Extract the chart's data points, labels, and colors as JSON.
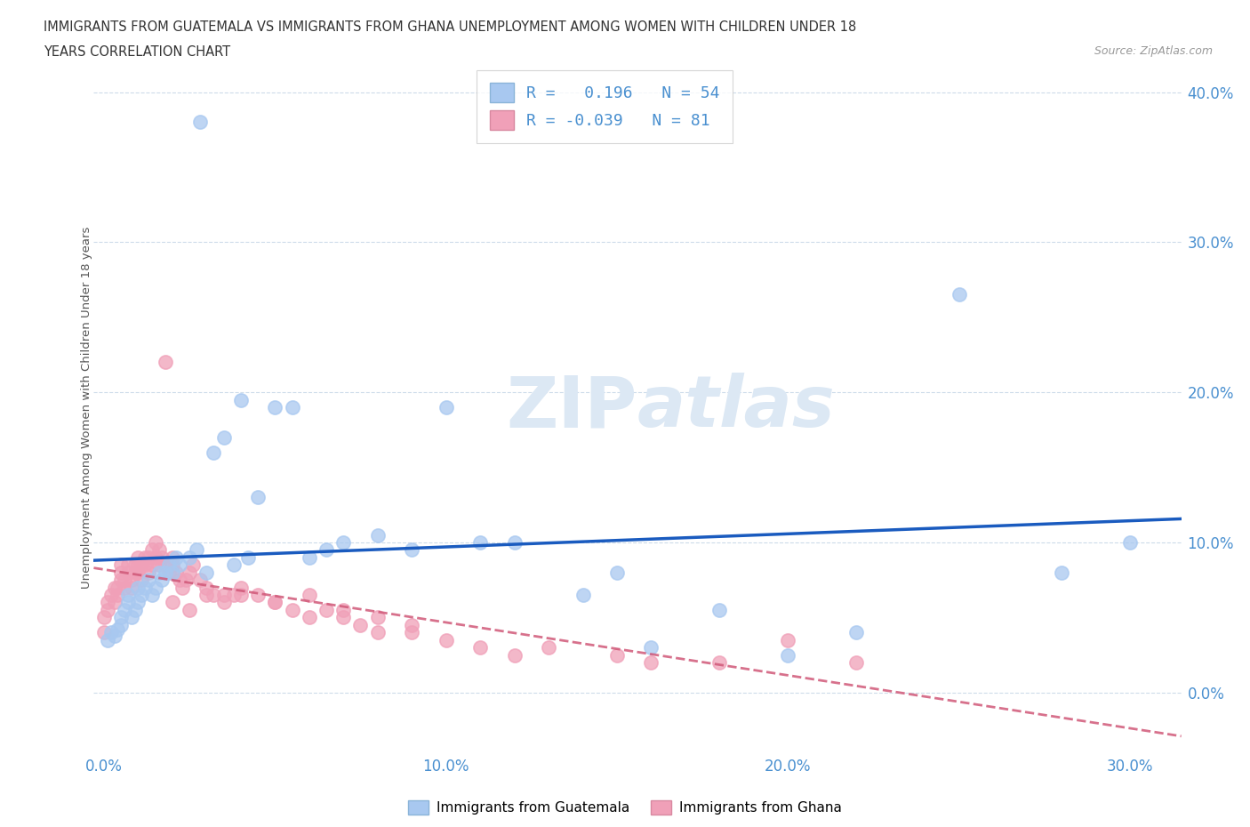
{
  "title_line1": "IMMIGRANTS FROM GUATEMALA VS IMMIGRANTS FROM GHANA UNEMPLOYMENT AMONG WOMEN WITH CHILDREN UNDER 18",
  "title_line2": "YEARS CORRELATION CHART",
  "source": "Source: ZipAtlas.com",
  "ylabel": "Unemployment Among Women with Children Under 18 years",
  "r_guatemala": 0.196,
  "n_guatemala": 54,
  "r_ghana": -0.039,
  "n_ghana": 81,
  "guatemala_color": "#a8c8f0",
  "ghana_color": "#f0a0b8",
  "guatemala_line_color": "#1a5bbf",
  "ghana_line_color": "#d05878",
  "background_color": "#ffffff",
  "grid_color": "#c8d8e8",
  "tick_color": "#4a90d0",
  "watermark_color": "#dce8f4",
  "xlim": [
    -0.003,
    0.315
  ],
  "ylim": [
    -0.04,
    0.42
  ],
  "xtick_vals": [
    0.0,
    0.1,
    0.2,
    0.3
  ],
  "ytick_vals": [
    0.0,
    0.1,
    0.2,
    0.3,
    0.4
  ],
  "guatemala_x": [
    0.001,
    0.002,
    0.003,
    0.004,
    0.005,
    0.005,
    0.006,
    0.007,
    0.007,
    0.008,
    0.009,
    0.01,
    0.01,
    0.011,
    0.012,
    0.013,
    0.014,
    0.015,
    0.016,
    0.017,
    0.018,
    0.019,
    0.02,
    0.021,
    0.022,
    0.025,
    0.027,
    0.028,
    0.03,
    0.032,
    0.035,
    0.038,
    0.04,
    0.042,
    0.045,
    0.05,
    0.055,
    0.06,
    0.065,
    0.07,
    0.08,
    0.09,
    0.1,
    0.11,
    0.12,
    0.14,
    0.15,
    0.16,
    0.18,
    0.2,
    0.22,
    0.25,
    0.28,
    0.3
  ],
  "guatemala_y": [
    0.035,
    0.04,
    0.038,
    0.042,
    0.05,
    0.045,
    0.055,
    0.06,
    0.065,
    0.05,
    0.055,
    0.06,
    0.07,
    0.065,
    0.07,
    0.075,
    0.065,
    0.07,
    0.08,
    0.075,
    0.08,
    0.085,
    0.08,
    0.09,
    0.085,
    0.09,
    0.095,
    0.38,
    0.08,
    0.16,
    0.17,
    0.085,
    0.195,
    0.09,
    0.13,
    0.19,
    0.19,
    0.09,
    0.095,
    0.1,
    0.105,
    0.095,
    0.19,
    0.1,
    0.1,
    0.065,
    0.08,
    0.03,
    0.055,
    0.025,
    0.04,
    0.265,
    0.08,
    0.1
  ],
  "ghana_x": [
    0.0,
    0.0,
    0.001,
    0.001,
    0.002,
    0.003,
    0.003,
    0.004,
    0.004,
    0.005,
    0.005,
    0.005,
    0.006,
    0.006,
    0.007,
    0.007,
    0.008,
    0.008,
    0.009,
    0.009,
    0.01,
    0.01,
    0.01,
    0.011,
    0.011,
    0.012,
    0.012,
    0.013,
    0.013,
    0.014,
    0.014,
    0.015,
    0.015,
    0.016,
    0.016,
    0.017,
    0.018,
    0.018,
    0.019,
    0.02,
    0.02,
    0.021,
    0.022,
    0.023,
    0.024,
    0.025,
    0.026,
    0.028,
    0.03,
    0.032,
    0.035,
    0.038,
    0.04,
    0.045,
    0.05,
    0.055,
    0.06,
    0.065,
    0.07,
    0.075,
    0.08,
    0.09,
    0.1,
    0.11,
    0.12,
    0.13,
    0.15,
    0.16,
    0.18,
    0.2,
    0.22,
    0.02,
    0.025,
    0.03,
    0.035,
    0.04,
    0.05,
    0.06,
    0.07,
    0.08,
    0.09
  ],
  "ghana_y": [
    0.04,
    0.05,
    0.06,
    0.055,
    0.065,
    0.07,
    0.06,
    0.065,
    0.07,
    0.075,
    0.08,
    0.085,
    0.07,
    0.075,
    0.08,
    0.085,
    0.07,
    0.075,
    0.08,
    0.085,
    0.09,
    0.085,
    0.08,
    0.075,
    0.085,
    0.09,
    0.085,
    0.08,
    0.09,
    0.085,
    0.095,
    0.09,
    0.1,
    0.095,
    0.085,
    0.09,
    0.085,
    0.22,
    0.08,
    0.09,
    0.085,
    0.08,
    0.075,
    0.07,
    0.075,
    0.08,
    0.085,
    0.075,
    0.07,
    0.065,
    0.06,
    0.065,
    0.07,
    0.065,
    0.06,
    0.055,
    0.05,
    0.055,
    0.05,
    0.045,
    0.04,
    0.04,
    0.035,
    0.03,
    0.025,
    0.03,
    0.025,
    0.02,
    0.02,
    0.035,
    0.02,
    0.06,
    0.055,
    0.065,
    0.065,
    0.065,
    0.06,
    0.065,
    0.055,
    0.05,
    0.045
  ]
}
